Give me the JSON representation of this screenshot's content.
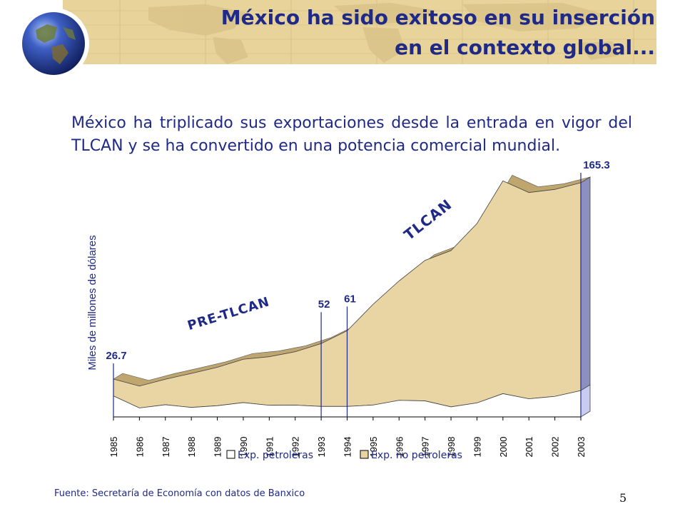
{
  "slide": {
    "title_line1": "México ha sido exitoso en su inserción",
    "title_line2": "en el contexto global...",
    "intro": "México ha triplicado sus exportaciones desde la entrada en vigor del TLCAN y se ha convertido en una potencia comercial mundial.",
    "source": "Fuente: Secretaría de Economía con datos de Banxico",
    "page_number": "5",
    "icons": [
      "globe-icon",
      "world-map-icon"
    ]
  },
  "colors": {
    "banner": "#e8d39a",
    "title": "#1f2a88",
    "non_oil_fill": "#e9d4a3",
    "non_oil_top": "#bfa56e",
    "oil_fill": "#ffffff",
    "label": "#1f2a88"
  },
  "chart_data": {
    "type": "area",
    "stacked": true,
    "ylabel": "Miles de millones de dólares",
    "x": [
      "1985",
      "1986",
      "1987",
      "1988",
      "1989",
      "1990",
      "1991",
      "1992",
      "1993",
      "1994",
      "1995",
      "1996",
      "1997",
      "1998",
      "1999",
      "2000",
      "2001",
      "2002",
      "2003"
    ],
    "series": [
      {
        "name": "Exp. petroleras",
        "values": [
          14.8,
          6.3,
          8.6,
          6.7,
          7.9,
          10.1,
          8.2,
          8.3,
          7.4,
          7.4,
          8.4,
          11.7,
          11.3,
          7.1,
          9.9,
          16.4,
          12.8,
          14.5,
          18.6
        ]
      },
      {
        "name": "Exp. no petroleras",
        "values": [
          11.9,
          15.5,
          18.0,
          24.0,
          27.1,
          30.6,
          34.3,
          37.7,
          44.4,
          53.4,
          71.1,
          84.3,
          99.2,
          110.3,
          126.6,
          150.2,
          145.6,
          146.1,
          146.7
        ]
      }
    ],
    "annotations": [
      {
        "x": "1985",
        "label": "26.7"
      },
      {
        "x": "1993",
        "label": "52"
      },
      {
        "x": "1994",
        "label": "61"
      },
      {
        "x": "2003",
        "label": "165.3"
      }
    ],
    "period_labels": [
      "PRE-TLCAN",
      "TLCAN"
    ],
    "legend": "bottom",
    "grid": false
  }
}
